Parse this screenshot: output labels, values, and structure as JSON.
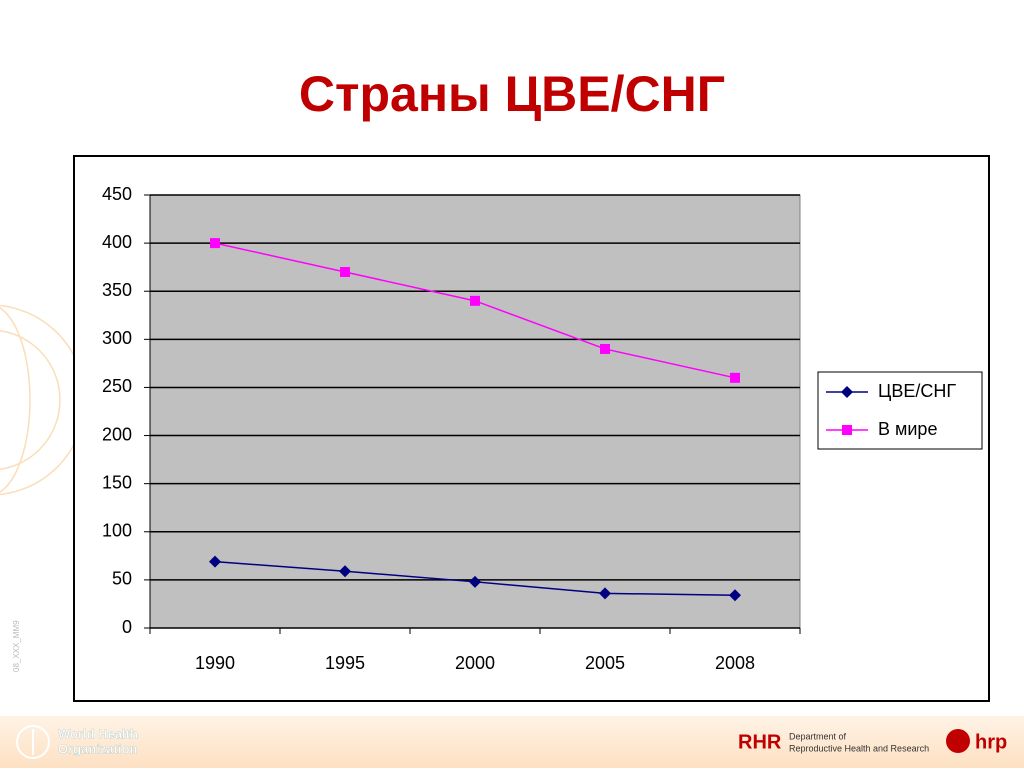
{
  "chart_data": {
    "type": "line",
    "title": "Страны ЦВЕ/СНГ",
    "categories": [
      "1990",
      "1995",
      "2000",
      "2005",
      "2008"
    ],
    "series": [
      {
        "name": "ЦВЕ/СНГ",
        "color": "#000080",
        "marker": "diamond",
        "values": [
          69,
          59,
          48,
          36,
          34
        ]
      },
      {
        "name": "В мире",
        "color": "#ff00ff",
        "marker": "square",
        "values": [
          400,
          370,
          340,
          290,
          260
        ]
      }
    ],
    "ylim": [
      0,
      450
    ],
    "yticks": [
      0,
      50,
      100,
      150,
      200,
      250,
      300,
      350,
      400,
      450
    ],
    "grid": true,
    "legend": "right",
    "plot_background": "#c0c0c0"
  },
  "footer": {
    "who": [
      "World Health",
      "Organization"
    ],
    "department": [
      "Department of",
      "Reproductive Health and Research"
    ],
    "hrp": "hrp",
    "slide_code": "08_XXX_MM9"
  }
}
